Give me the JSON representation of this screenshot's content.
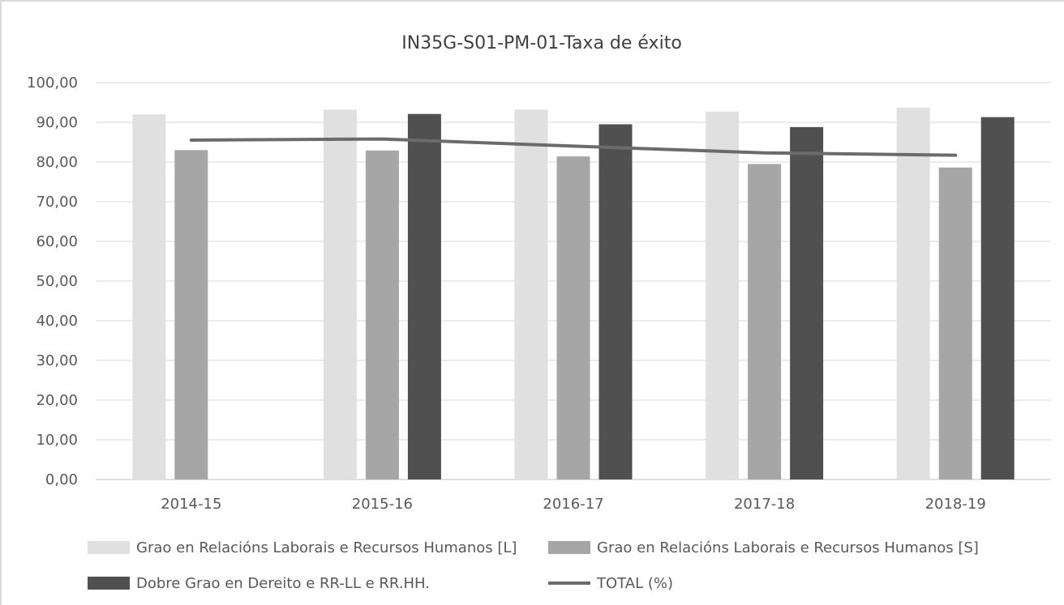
{
  "chart_data": {
    "type": "bar",
    "title": "IN35G-S01-PM-01-Taxa de éxito",
    "xlabel": "",
    "ylabel": "",
    "ylim": [
      0,
      100
    ],
    "y_ticks": [
      "0,00",
      "10,00",
      "20,00",
      "30,00",
      "40,00",
      "50,00",
      "60,00",
      "70,00",
      "80,00",
      "90,00",
      "100,00"
    ],
    "categories": [
      "2014-15",
      "2015-16",
      "2016-17",
      "2017-18",
      "2018-19"
    ],
    "series": [
      {
        "name": "Grao en Relacións Laborais e Recursos Humanos [L]",
        "kind": "bar",
        "color": "#e0e0e0",
        "values": [
          92.0,
          93.2,
          93.2,
          92.7,
          93.7
        ]
      },
      {
        "name": "Grao en Relacións Laborais e Recursos Humanos [S]",
        "kind": "bar",
        "color": "#a6a6a6",
        "values": [
          83.0,
          82.9,
          81.4,
          79.5,
          78.6
        ]
      },
      {
        "name": "Dobre Grao en Dereito e RR-LL e RR.HH.",
        "kind": "bar",
        "color": "#505050",
        "values": [
          null,
          92.1,
          89.5,
          88.8,
          91.3
        ]
      },
      {
        "name": "TOTAL (%)",
        "kind": "line",
        "color": "#6b6b6b",
        "values": [
          85.5,
          85.8,
          84.0,
          82.3,
          81.7
        ]
      }
    ],
    "grid": true,
    "legend_position": "bottom"
  }
}
